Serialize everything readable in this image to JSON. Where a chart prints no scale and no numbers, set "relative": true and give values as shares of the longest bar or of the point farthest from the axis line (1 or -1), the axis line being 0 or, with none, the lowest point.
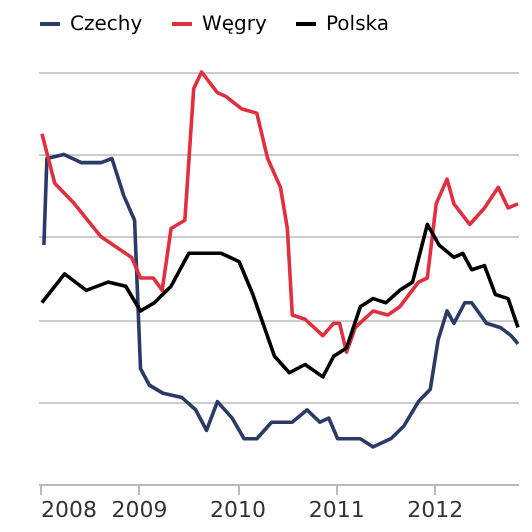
{
  "chart_data": {
    "type": "line",
    "relative": true,
    "grid": "y",
    "legend": "top",
    "line_style": "solid",
    "marker": "none",
    "xlim": [
      2007.98,
      2012.85
    ],
    "xticks": [
      2008,
      2009,
      2010,
      2011,
      2012
    ],
    "series": [
      {
        "name": "Czechy",
        "color": "#2b3a67",
        "x": [
          2008.04,
          2008.07,
          2008.24,
          2008.42,
          2008.62,
          2008.73,
          2008.85,
          2008.96,
          2009.02,
          2009.11,
          2009.25,
          2009.44,
          2009.58,
          2009.69,
          2009.8,
          2009.95,
          2010.07,
          2010.2,
          2010.35,
          2010.56,
          2010.71,
          2010.84,
          2010.93,
          2011.02,
          2011.25,
          2011.38,
          2011.56,
          2011.69,
          2011.84,
          2011.96,
          2012.04,
          2012.13,
          2012.2,
          2012.31,
          2012.38,
          2012.53,
          2012.67,
          2012.78,
          2012.85
        ],
        "values": [
          0.58,
          0.79,
          0.8,
          0.78,
          0.78,
          0.79,
          0.7,
          0.64,
          0.28,
          0.24,
          0.22,
          0.21,
          0.18,
          0.13,
          0.2,
          0.16,
          0.11,
          0.11,
          0.15,
          0.15,
          0.18,
          0.15,
          0.16,
          0.11,
          0.11,
          0.09,
          0.11,
          0.14,
          0.2,
          0.23,
          0.35,
          0.42,
          0.39,
          0.44,
          0.44,
          0.39,
          0.38,
          0.36,
          0.34
        ]
      },
      {
        "name": "Węgry",
        "color": "#e0303f",
        "x": [
          2008.02,
          2008.15,
          2008.35,
          2008.62,
          2008.93,
          2009.02,
          2009.15,
          2009.24,
          2009.33,
          2009.47,
          2009.56,
          2009.64,
          2009.8,
          2009.89,
          2010.05,
          2010.2,
          2010.31,
          2010.44,
          2010.51,
          2010.56,
          2010.69,
          2010.87,
          2010.98,
          2011.04,
          2011.11,
          2011.2,
          2011.38,
          2011.53,
          2011.65,
          2011.84,
          2011.93,
          2012.02,
          2012.13,
          2012.2,
          2012.36,
          2012.51,
          2012.65,
          2012.75,
          2012.85
        ],
        "values": [
          0.85,
          0.73,
          0.68,
          0.6,
          0.55,
          0.5,
          0.5,
          0.47,
          0.62,
          0.64,
          0.96,
          1.0,
          0.95,
          0.94,
          0.91,
          0.9,
          0.79,
          0.72,
          0.62,
          0.41,
          0.4,
          0.36,
          0.39,
          0.39,
          0.32,
          0.38,
          0.42,
          0.41,
          0.43,
          0.49,
          0.5,
          0.68,
          0.74,
          0.68,
          0.63,
          0.67,
          0.72,
          0.67,
          0.68
        ]
      },
      {
        "name": "Polska",
        "color": "#000000",
        "x": [
          2008.02,
          2008.25,
          2008.47,
          2008.69,
          2008.87,
          2009.02,
          2009.16,
          2009.33,
          2009.51,
          2009.84,
          2010.02,
          2010.16,
          2010.38,
          2010.53,
          2010.69,
          2010.87,
          2010.98,
          2011.11,
          2011.25,
          2011.38,
          2011.51,
          2011.65,
          2011.78,
          2011.93,
          2012.05,
          2012.2,
          2012.29,
          2012.38,
          2012.51,
          2012.62,
          2012.75,
          2012.85
        ],
        "values": [
          0.44,
          0.51,
          0.47,
          0.49,
          0.48,
          0.42,
          0.44,
          0.48,
          0.56,
          0.56,
          0.54,
          0.46,
          0.31,
          0.27,
          0.29,
          0.26,
          0.31,
          0.33,
          0.43,
          0.45,
          0.44,
          0.47,
          0.49,
          0.63,
          0.58,
          0.55,
          0.56,
          0.52,
          0.53,
          0.46,
          0.45,
          0.38
        ]
      }
    ]
  }
}
